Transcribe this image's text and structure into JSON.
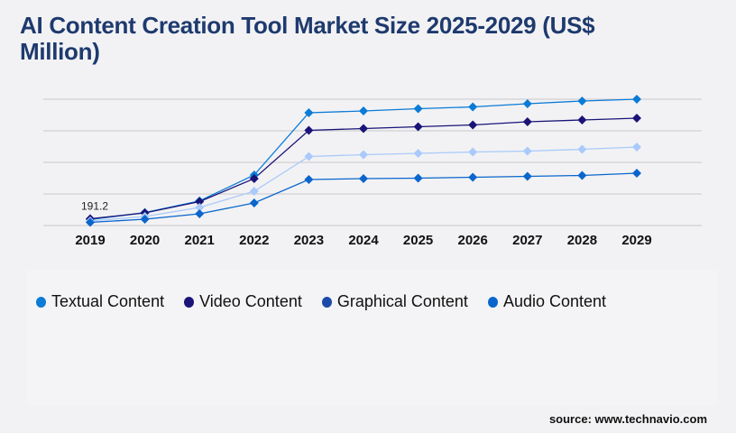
{
  "chart_data": {
    "type": "line",
    "title": "AI Content Creation Tool Market Size 2025-2029 (US$ Million)",
    "xlabel": "",
    "ylabel": "",
    "x": [
      "2019",
      "2020",
      "2021",
      "2022",
      "2023",
      "2024",
      "2025",
      "2026",
      "2027",
      "2028",
      "2029"
    ],
    "ylim": [
      0,
      4000
    ],
    "grid": true,
    "y_tick_labels_shown": false,
    "legend_placement": "bottom",
    "annotations": [
      {
        "series": "Textual Content",
        "x": "2019",
        "text": "191.2"
      }
    ],
    "series": [
      {
        "name": "Textual Content",
        "color": "#0a7bd6",
        "legend_color": "#0a7bd6",
        "values": [
          191.2,
          409,
          780,
          1600,
          3571,
          3629,
          3700,
          3757,
          3857,
          3943,
          4000
        ]
      },
      {
        "name": "Video Content",
        "color": "#1a1478",
        "legend_color": "#1a1478",
        "values": [
          214,
          400,
          757,
          1486,
          3014,
          3071,
          3129,
          3186,
          3286,
          3343,
          3400
        ]
      },
      {
        "name": "Graphical Content",
        "color": "#a9cafa",
        "legend_color": "#1c4aa8",
        "values": [
          143,
          286,
          571,
          1086,
          2186,
          2243,
          2286,
          2329,
          2357,
          2414,
          2486
        ]
      },
      {
        "name": "Audio Content",
        "color": "#0a66cc",
        "legend_color": "#0a66cc",
        "values": [
          100,
          200,
          371,
          714,
          1457,
          1486,
          1500,
          1529,
          1557,
          1586,
          1657
        ]
      }
    ]
  },
  "source": "source: www.technavio.com"
}
